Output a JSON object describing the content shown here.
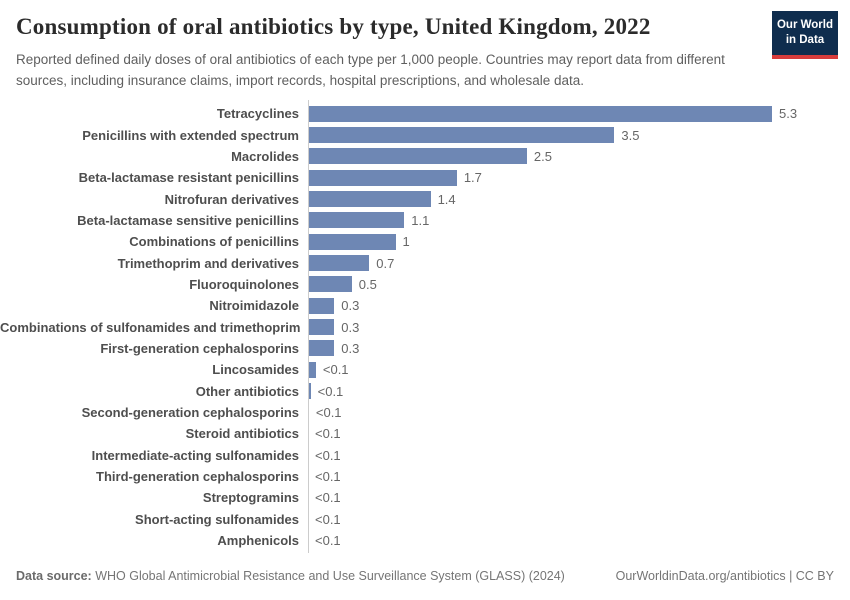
{
  "header": {
    "title": "Consumption of oral antibiotics by type, United Kingdom, 2022",
    "subtitle": "Reported defined daily doses of oral antibiotics of each type per 1,000 people. Countries may report data from different sources, including insurance claims, import records, hospital prescriptions, and wholesale data.",
    "logo": {
      "line1": "Our World",
      "line2": "in Data",
      "bg_color": "#0f2d4e",
      "accent_color": "#d73c3c"
    }
  },
  "chart_data": {
    "type": "bar",
    "orientation": "horizontal",
    "title": "Consumption of oral antibiotics by type, United Kingdom, 2022",
    "unit": "defined daily doses per 1,000 people",
    "xlim": [
      0,
      5.6
    ],
    "grid": false,
    "legend": false,
    "colors": {
      "bar": "#6e87b4",
      "axis": "#cccccc",
      "category_label": "#4e4e4e",
      "value_label": "#666666"
    },
    "bars": [
      {
        "category": "Tetracyclines",
        "value": 5.3,
        "label": "5.3"
      },
      {
        "category": "Penicillins with extended spectrum",
        "value": 3.5,
        "label": "3.5"
      },
      {
        "category": "Macrolides",
        "value": 2.5,
        "label": "2.5"
      },
      {
        "category": "Beta-lactamase resistant penicillins",
        "value": 1.7,
        "label": "1.7"
      },
      {
        "category": "Nitrofuran derivatives",
        "value": 1.4,
        "label": "1.4"
      },
      {
        "category": "Beta-lactamase sensitive penicillins",
        "value": 1.1,
        "label": "1.1"
      },
      {
        "category": "Combinations of penicillins",
        "value": 1.0,
        "label": "1"
      },
      {
        "category": "Trimethoprim and derivatives",
        "value": 0.7,
        "label": "0.7"
      },
      {
        "category": "Fluoroquinolones",
        "value": 0.5,
        "label": "0.5"
      },
      {
        "category": "Nitroimidazole",
        "value": 0.3,
        "label": "0.3"
      },
      {
        "category": "Combinations of sulfonamides and trimethoprim",
        "value": 0.3,
        "label": "0.3"
      },
      {
        "category": "First-generation cephalosporins",
        "value": 0.3,
        "label": "0.3"
      },
      {
        "category": "Lincosamides",
        "value": 0.09,
        "label": "<0.1"
      },
      {
        "category": "Other antibiotics",
        "value": 0.03,
        "label": "<0.1"
      },
      {
        "category": "Second-generation cephalosporins",
        "value": 0.01,
        "label": "<0.1"
      },
      {
        "category": "Steroid antibiotics",
        "value": 0,
        "label": "<0.1"
      },
      {
        "category": "Intermediate-acting sulfonamides",
        "value": 0,
        "label": "<0.1"
      },
      {
        "category": "Third-generation cephalosporins",
        "value": 0,
        "label": "<0.1"
      },
      {
        "category": "Streptogramins",
        "value": 0,
        "label": "<0.1"
      },
      {
        "category": "Short-acting sulfonamides",
        "value": 0,
        "label": "<0.1"
      },
      {
        "category": "Amphenicols",
        "value": 0,
        "label": "<0.1"
      }
    ]
  },
  "footer": {
    "source_label": "Data source:",
    "source_text": " WHO Global Antimicrobial Resistance and Use Surveillance System (GLASS) (2024)",
    "link_text": "OurWorldinData.org/antibiotics | CC BY"
  }
}
